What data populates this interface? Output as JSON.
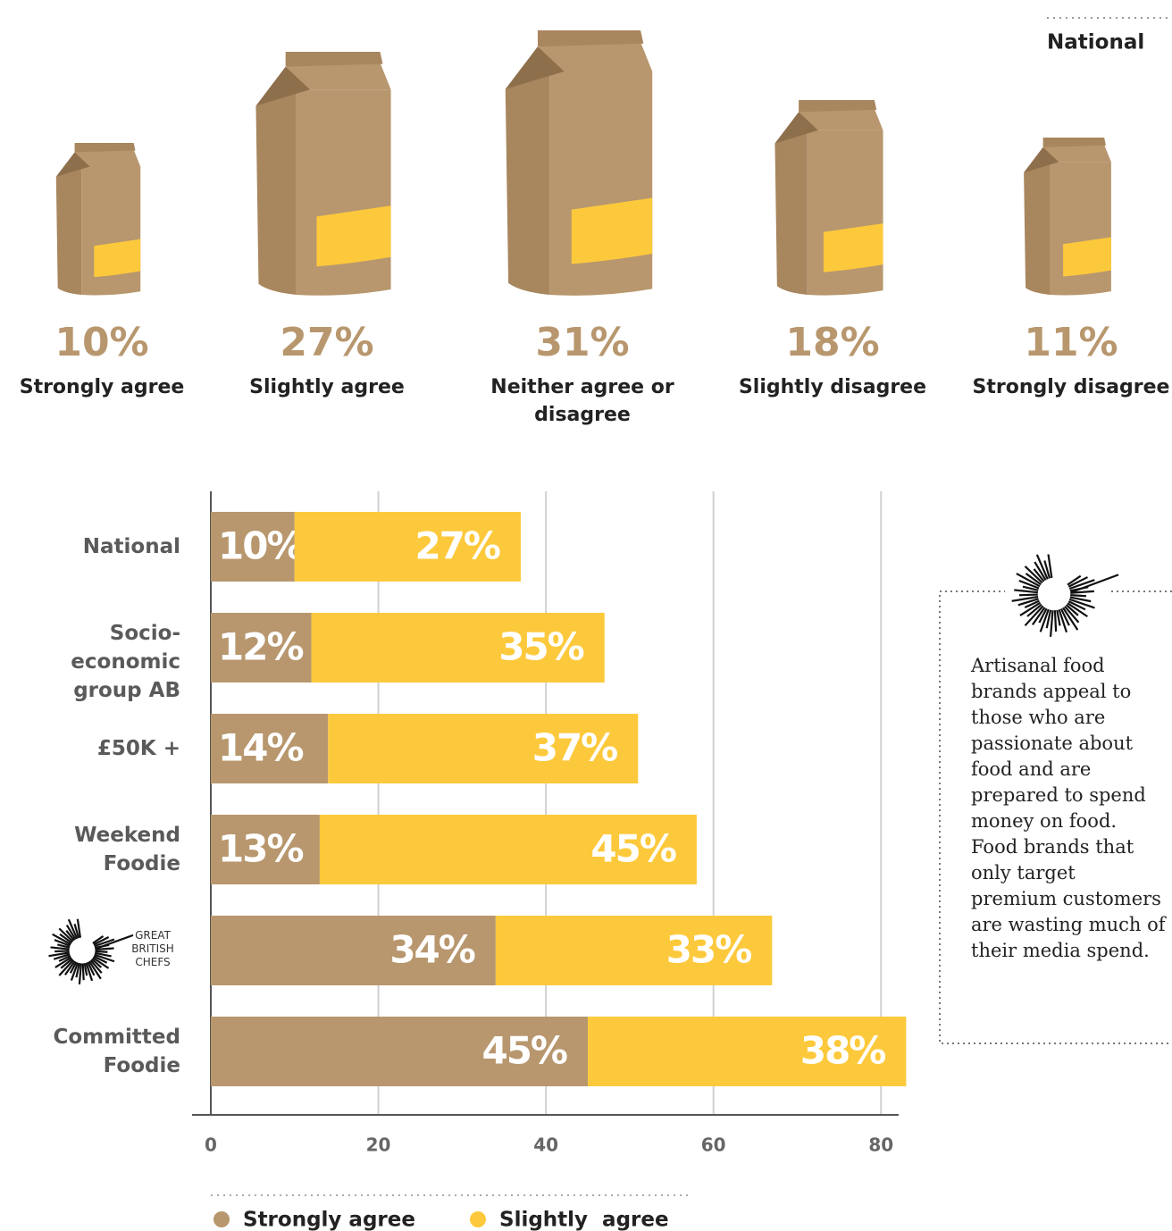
{
  "chart_data": [
    {
      "type": "pictogram",
      "title": "National",
      "categories": [
        "Strongly agree",
        "Slightly agree",
        "Neither agree or disagree",
        "Slightly disagree",
        "Strongly disagree"
      ],
      "values": [
        10,
        27,
        31,
        18,
        11
      ],
      "value_labels": [
        "10%",
        "27%",
        "31%",
        "18%",
        "11%"
      ],
      "color": "#b8976e",
      "label_color": "#fdc93c"
    },
    {
      "type": "stacked-barh",
      "categories": [
        "National",
        "Socio-economic group AB",
        "£50K +",
        "Weekend Foodie",
        "GREAT BRITISH CHEFS",
        "Committed Foodie"
      ],
      "series": [
        {
          "name": "Strongly agree",
          "color": "#b8976e",
          "values": [
            10,
            12,
            14,
            13,
            34,
            45
          ],
          "value_labels": [
            "10%",
            "12%",
            "14%",
            "13%",
            "34%",
            "45%"
          ]
        },
        {
          "name": "Slightly  agree",
          "color": "#fdc93c",
          "values": [
            27,
            35,
            37,
            45,
            33,
            38
          ],
          "value_labels": [
            "27%",
            "35%",
            "37%",
            "45%",
            "33%",
            "38%"
          ]
        }
      ],
      "xlim": [
        0,
        82
      ],
      "xticks": [
        0,
        20,
        40,
        60,
        80
      ],
      "grid": true,
      "annotation": "Artisanal food brands appeal to those who are passionate about food and are prepared to spend money on food. Food brands that only target premium customers are wasting much of their media spend."
    }
  ]
}
